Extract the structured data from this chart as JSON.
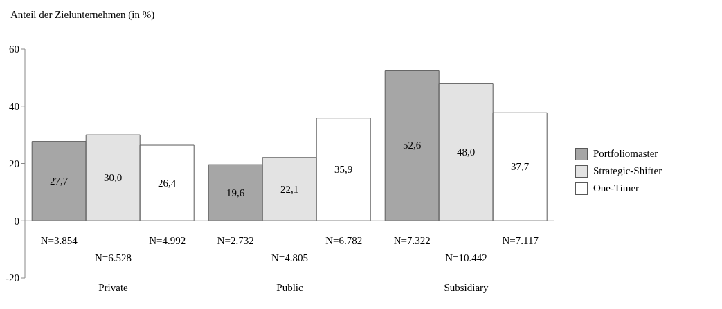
{
  "chart_data": {
    "type": "bar",
    "ylabel": "Anteil der Zielunternehmen (in %)",
    "categories": [
      "Private",
      "Public",
      "Subsidiary"
    ],
    "series": [
      {
        "name": "Portfoliomaster",
        "color": "#a6a6a6",
        "values": [
          27.7,
          19.6,
          52.6
        ],
        "value_labels": [
          "27,7",
          "19,6",
          "52,6"
        ]
      },
      {
        "name": "Strategic-Shifter",
        "color": "#e3e3e3",
        "values": [
          30.0,
          22.1,
          48.0
        ],
        "value_labels": [
          "30,0",
          "22,1",
          "48,0"
        ]
      },
      {
        "name": "One-Timer",
        "color": "#ffffff",
        "values": [
          26.4,
          35.9,
          37.7
        ],
        "value_labels": [
          "26,4",
          "35,9",
          "37,7"
        ]
      }
    ],
    "ylim": [
      -20,
      60
    ],
    "yticks": [
      -20,
      0,
      20,
      40,
      60
    ],
    "ref_lines": [
      {
        "axis": "y",
        "value": 0,
        "color": "#888888"
      }
    ],
    "legend": "right",
    "annotations": [
      "N=3.854",
      "N=6.528",
      "N=4.992",
      "N=2.732",
      "N=4.805",
      "N=6.782",
      "N=7.322",
      "N=10.442",
      "N=7.117"
    ]
  }
}
